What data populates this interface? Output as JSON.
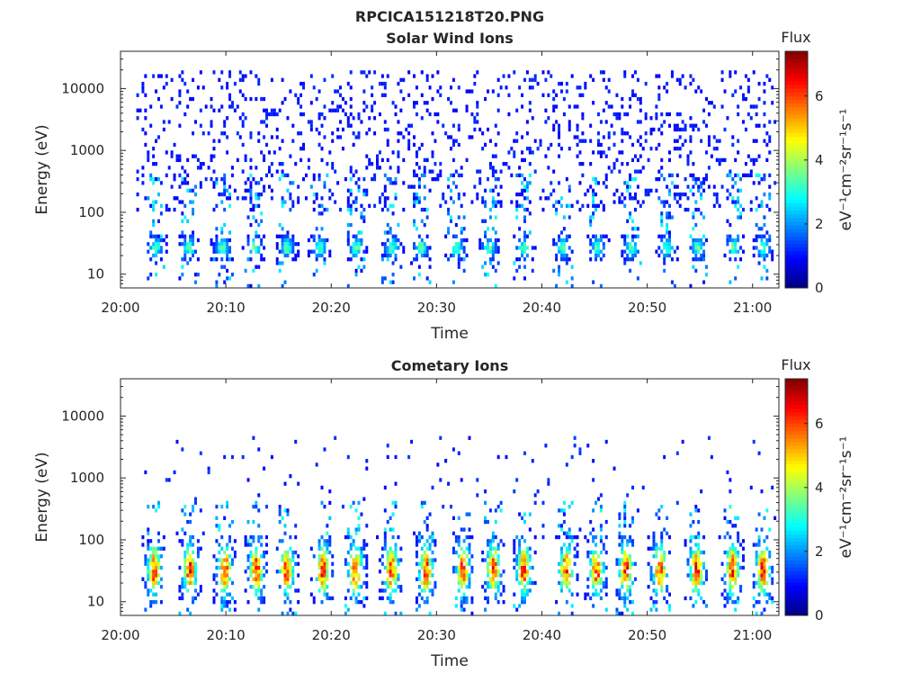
{
  "figure": {
    "title": "RPCICA151218T20.PNG"
  },
  "chart_data": [
    {
      "type": "heatmap",
      "title": "Solar Wind Ions",
      "xlabel": "Time",
      "ylabel": "Energy (eV)",
      "x_tick_labels": [
        "20:00",
        "20:10",
        "20:20",
        "20:30",
        "20:40",
        "20:50",
        "21:00"
      ],
      "x_ticks_minutes": [
        0,
        10,
        20,
        30,
        40,
        50,
        60
      ],
      "xlim_minutes": [
        0,
        62.5
      ],
      "y_tick_labels": [
        "10",
        "100",
        "1000",
        "10000"
      ],
      "y_ticks": [
        10,
        100,
        1000,
        10000
      ],
      "ylim": [
        6,
        40000
      ],
      "y_scale": "log",
      "colorbar": {
        "title": "Flux",
        "label": "eV⁻¹cm⁻²sr⁻¹s⁻¹",
        "ticks": [
          0,
          2,
          4,
          6
        ],
        "range": [
          0,
          7.4
        ],
        "colormap": "jet"
      },
      "events_minutes": [
        3.3,
        6.5,
        9.7,
        12.7,
        15.8,
        18.9,
        22.4,
        25.8,
        28.5,
        31.9,
        35.0,
        38.3,
        42.0,
        45.3,
        48.5,
        51.9,
        54.8,
        58.2,
        61.0
      ],
      "band_energy_eV": [
        18,
        40
      ],
      "band_peak_flux": 3.4,
      "background_flux": 0.8,
      "high_energy_range_eV": [
        100,
        20000
      ]
    },
    {
      "type": "heatmap",
      "title": "Cometary Ions",
      "xlabel": "Time",
      "ylabel": "Energy (eV)",
      "x_tick_labels": [
        "20:00",
        "20:10",
        "20:20",
        "20:30",
        "20:40",
        "20:50",
        "21:00"
      ],
      "x_ticks_minutes": [
        0,
        10,
        20,
        30,
        40,
        50,
        60
      ],
      "xlim_minutes": [
        0,
        62.5
      ],
      "y_tick_labels": [
        "10",
        "100",
        "1000",
        "10000"
      ],
      "y_ticks": [
        10,
        100,
        1000,
        10000
      ],
      "ylim": [
        6,
        40000
      ],
      "y_scale": "log",
      "colorbar": {
        "title": "Flux",
        "label": "eV⁻¹cm⁻²sr⁻¹s⁻¹",
        "ticks": [
          0,
          2,
          4,
          6
        ],
        "range": [
          0,
          7.4
        ],
        "colormap": "jet"
      },
      "events_minutes": [
        3.2,
        6.6,
        9.9,
        12.9,
        15.8,
        19.2,
        22.3,
        25.7,
        29.0,
        32.5,
        35.4,
        38.3,
        42.3,
        45.2,
        48.0,
        51.2,
        54.7,
        58.1,
        61.0
      ],
      "band_energy_eV": [
        12,
        90
      ],
      "band_peak_flux": 6.2,
      "background_flux": 0.9,
      "high_energy_range_eV": [
        100,
        5000
      ]
    }
  ]
}
